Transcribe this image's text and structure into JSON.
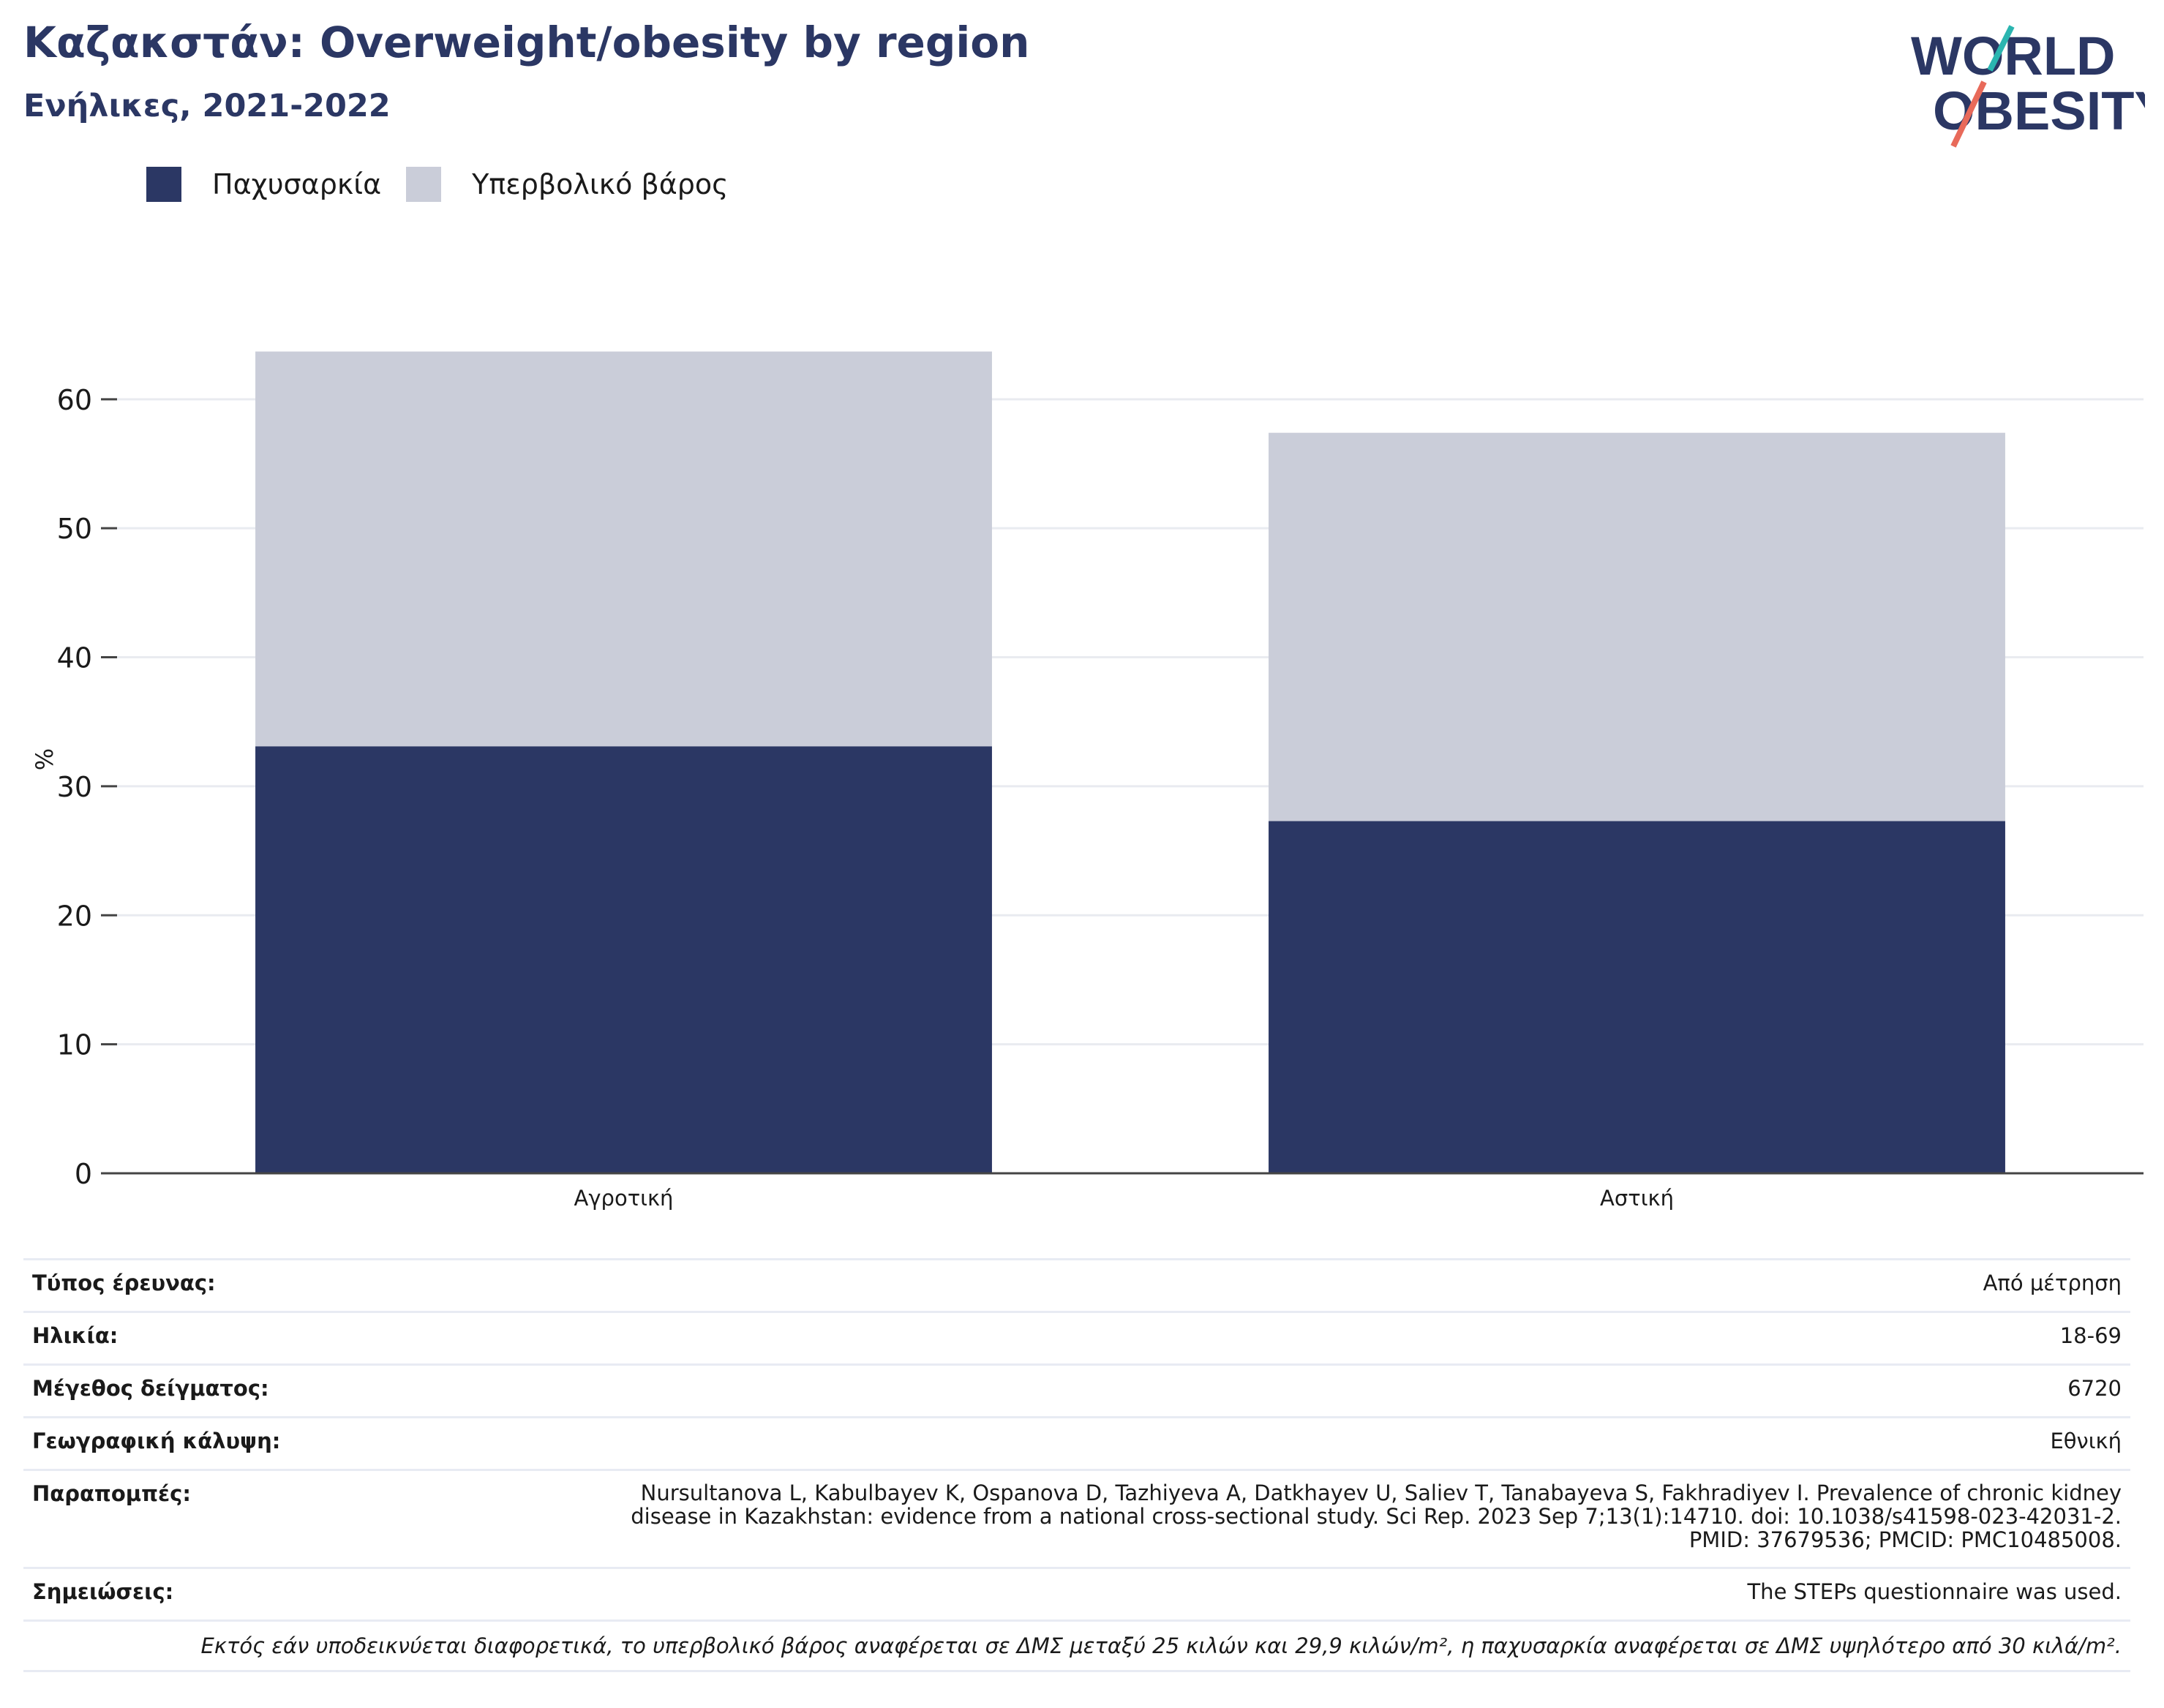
{
  "header": {
    "title": "Καζακστάν: Overweight/obesity by region",
    "subtitle": "Ενήλικες, 2021-2022"
  },
  "logo": {
    "line1": "WORLD",
    "line2": "OBESITY"
  },
  "colors": {
    "obesity": "#2b3764",
    "overweight": "#cacdd9",
    "title": "#2b3764"
  },
  "chart_data": {
    "type": "bar",
    "stacked": true,
    "categories": [
      "Αγροτική",
      "Αστική"
    ],
    "series": [
      {
        "name": "Παχυσαρκία",
        "color": "#2b3764",
        "values": [
          33.1,
          27.3
        ]
      },
      {
        "name": "Υπερβολικό βάρος",
        "color": "#cacdd9",
        "values": [
          30.6,
          30.1
        ]
      }
    ],
    "ylabel": "%",
    "ylim": [
      0,
      66
    ],
    "yticks": [
      0,
      10,
      20,
      30,
      40,
      50,
      60
    ],
    "grid": true,
    "legend": "top-left"
  },
  "info": [
    {
      "key": "Τύπος έρευνας:",
      "value": "Από μέτρηση"
    },
    {
      "key": "Ηλικία:",
      "value": "18-69"
    },
    {
      "key": "Μέγεθος δείγματος:",
      "value": "6720"
    },
    {
      "key": "Γεωγραφική κάλυψη:",
      "value": "Εθνική"
    },
    {
      "key": "Παραπομπές:",
      "value": "Nursultanova L, Kabulbayev K, Ospanova D, Tazhiyeva A, Datkhayev U, Saliev T, Tanabayeva S, Fakhradiyev I. Prevalence of chronic kidney disease in Kazakhstan: evidence from a national cross-sectional study. Sci Rep. 2023 Sep 7;13(1):14710. doi: 10.1038/s41598-023-42031-2. PMID: 37679536; PMCID: PMC10485008."
    },
    {
      "key": "Σημειώσεις:",
      "value": "The STEPs questionnaire was used."
    }
  ],
  "footnote": "Εκτός εάν υποδεικνύεται διαφορετικά, το υπερβολικό βάρος αναφέρεται σε ΔΜΣ μεταξύ 25 κιλών και 29,9 κιλών/m², η παχυσαρκία αναφέρεται σε ΔΜΣ υψηλότερο από 30 κιλά/m²."
}
